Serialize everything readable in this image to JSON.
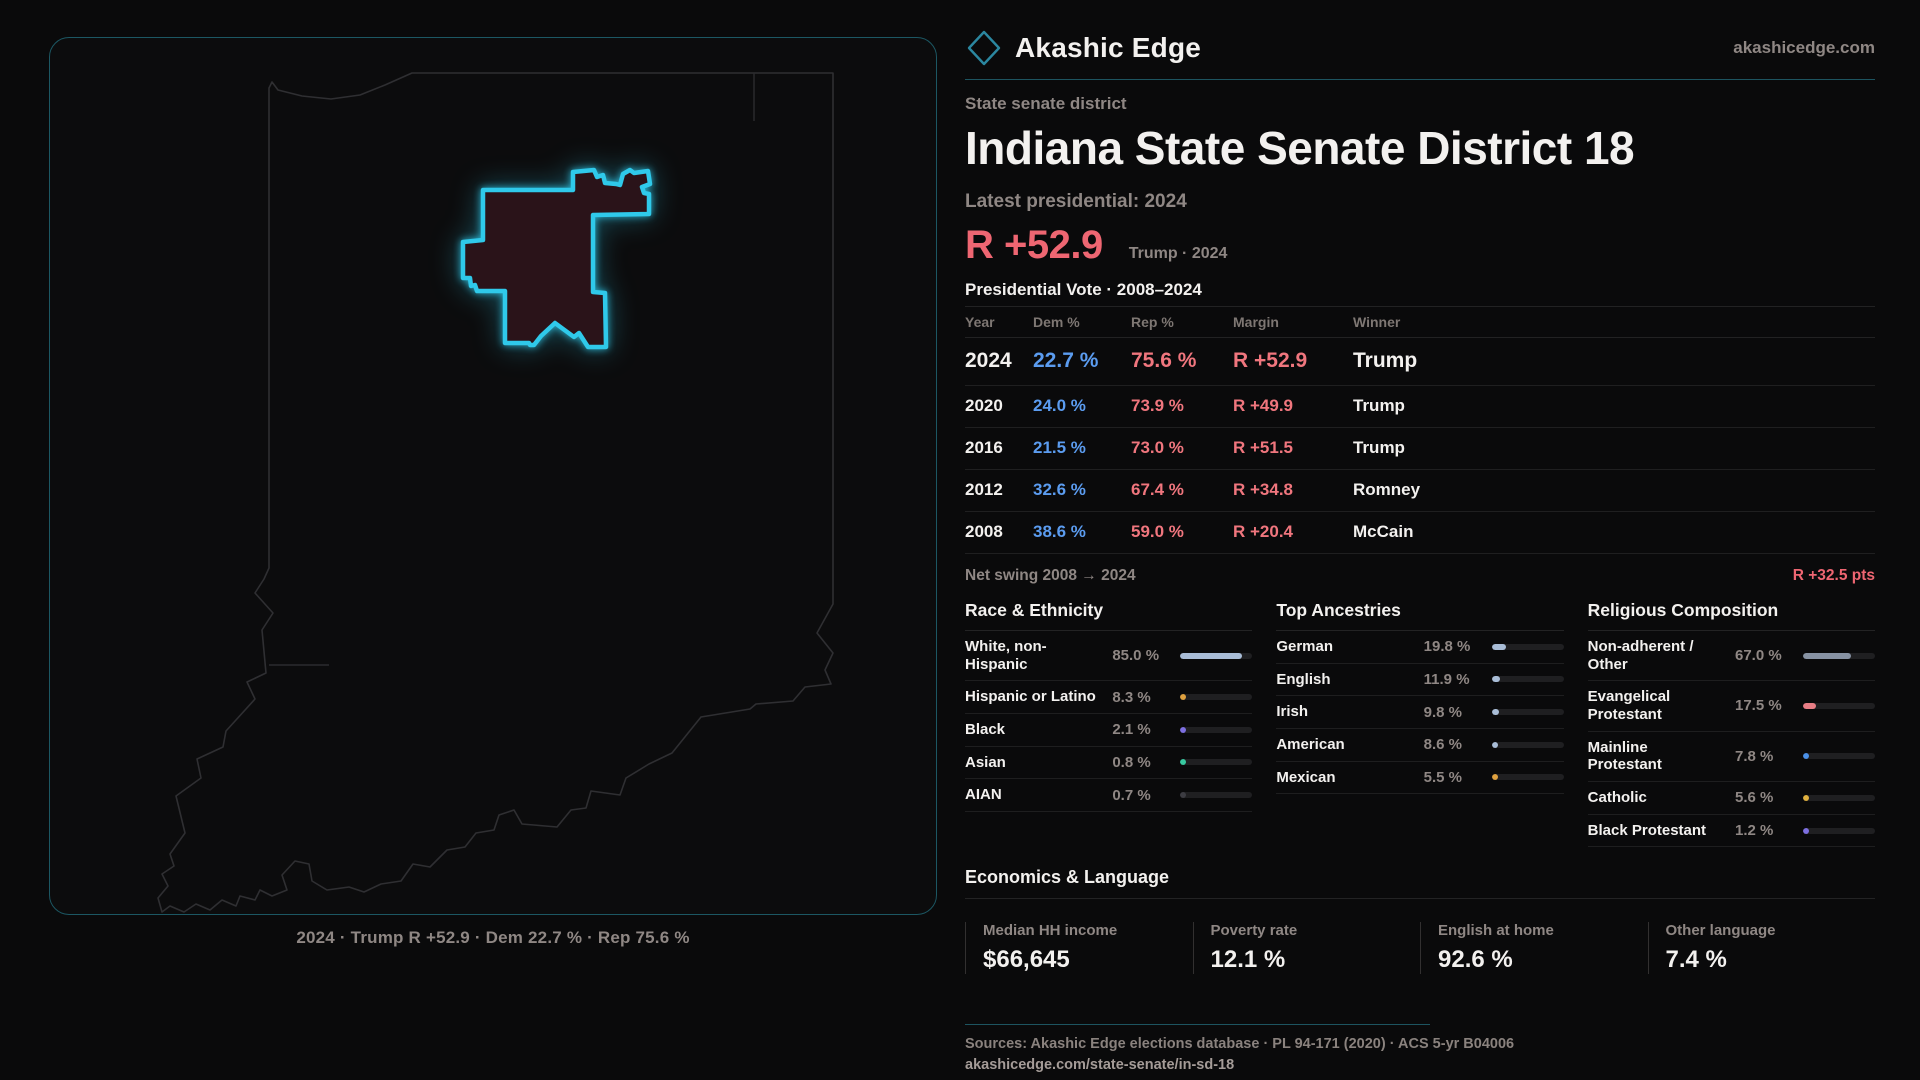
{
  "site": {
    "brand": "Akashic Edge",
    "domain": "akashicedge.com",
    "accent_cyan": "#2fc9ea",
    "dem_blue": "#5b9cf0",
    "rep_red": "#f0767e"
  },
  "map": {
    "caption": "2024 · Trump R +52.9 · Dem 22.7 % · Rep 75.6 %"
  },
  "header": {
    "eyebrow": "State senate district",
    "title": "Indiana State Senate District 18",
    "latest_label": "Latest presidential: 2024",
    "margin_value": "R +52.9",
    "margin_note": "Trump · 2024"
  },
  "vote_table": {
    "title": "Presidential Vote · 2008–2024",
    "columns": [
      "Year",
      "Dem %",
      "Rep %",
      "Margin",
      "Winner"
    ],
    "rows": [
      {
        "big": true,
        "year": "2024",
        "dem": "22.7 %",
        "rep": "75.6 %",
        "margin": "R +52.9",
        "winner": "Trump"
      },
      {
        "year": "2020",
        "dem": "24.0 %",
        "rep": "73.9 %",
        "margin": "R +49.9",
        "winner": "Trump"
      },
      {
        "year": "2016",
        "dem": "21.5 %",
        "rep": "73.0 %",
        "margin": "R +51.5",
        "winner": "Trump"
      },
      {
        "year": "2012",
        "dem": "32.6 %",
        "rep": "67.4 %",
        "margin": "R +34.8",
        "winner": "Romney"
      },
      {
        "year": "2008",
        "dem": "38.6 %",
        "rep": "59.0 %",
        "margin": "R +20.4",
        "winner": "McCain"
      }
    ],
    "net_swing_label": "Net swing 2008 → 2024",
    "net_swing_value": "R +32.5 pts"
  },
  "race": {
    "title": "Race & Ethnicity",
    "rows": [
      {
        "label": "White, non-Hispanic",
        "value": "85.0 %",
        "pct": 85.0,
        "color": "#a9bdd7"
      },
      {
        "label": "Hispanic or Latino",
        "value": "8.3 %",
        "pct": 8.3,
        "color": "#dfa13f"
      },
      {
        "label": "Black",
        "value": "2.1 %",
        "pct": 2.1,
        "color": "#7d6fe0"
      },
      {
        "label": "Asian",
        "value": "0.8 %",
        "pct": 0.8,
        "color": "#38c9a0"
      },
      {
        "label": "AIAN",
        "value": "0.7 %",
        "pct": 0.7,
        "color": "#3c3c42"
      }
    ]
  },
  "ancestries": {
    "title": "Top Ancestries",
    "rows": [
      {
        "label": "German",
        "value": "19.8 %",
        "pct": 19.8,
        "color": "#a9bdd7"
      },
      {
        "label": "English",
        "value": "11.9 %",
        "pct": 11.9,
        "color": "#a9bdd7"
      },
      {
        "label": "Irish",
        "value": "9.8 %",
        "pct": 9.8,
        "color": "#a9bdd7"
      },
      {
        "label": "American",
        "value": "8.6 %",
        "pct": 8.6,
        "color": "#a9bdd7"
      },
      {
        "label": "Mexican",
        "value": "5.5 %",
        "pct": 5.5,
        "color": "#dfa13f"
      }
    ]
  },
  "religion": {
    "title": "Religious Composition",
    "rows": [
      {
        "label": "Non-adherent / Other",
        "value": "67.0 %",
        "pct": 67.0,
        "color": "#8792a3"
      },
      {
        "label": "Evangelical Protestant",
        "value": "17.5 %",
        "pct": 17.5,
        "color": "#e87d85"
      },
      {
        "label": "Mainline Protestant",
        "value": "7.8 %",
        "pct": 7.8,
        "color": "#4a90e8"
      },
      {
        "label": "Catholic",
        "value": "5.6 %",
        "pct": 5.6,
        "color": "#e0b13f"
      },
      {
        "label": "Black Protestant",
        "value": "1.2 %",
        "pct": 1.2,
        "color": "#7d6fe0"
      }
    ]
  },
  "economics": {
    "title": "Economics & Language",
    "stats": [
      {
        "label": "Median HH income",
        "value": "$66,645"
      },
      {
        "label": "Poverty rate",
        "value": "12.1 %"
      },
      {
        "label": "English at home",
        "value": "92.6 %"
      },
      {
        "label": "Other language",
        "value": "7.4 %"
      }
    ]
  },
  "footer": {
    "sources": "Sources: Akashic Edge elections database · PL 94-171 (2020) · ACS 5-yr B04006",
    "permalink": "akashicedge.com/state-senate/in-sd-18"
  },
  "chart_data": [
    {
      "type": "table",
      "title": "Presidential Vote · 2008–2024",
      "columns": [
        "Year",
        "Dem %",
        "Rep %",
        "Margin",
        "Winner"
      ],
      "rows": [
        [
          "2024",
          22.7,
          75.6,
          "R +52.9",
          "Trump"
        ],
        [
          "2020",
          24.0,
          73.9,
          "R +49.9",
          "Trump"
        ],
        [
          "2016",
          21.5,
          73.0,
          "R +51.5",
          "Trump"
        ],
        [
          "2012",
          32.6,
          67.4,
          "R +34.8",
          "Romney"
        ],
        [
          "2008",
          38.6,
          59.0,
          "R +20.4",
          "McCain"
        ]
      ]
    },
    {
      "type": "bar",
      "title": "Race & Ethnicity",
      "categories": [
        "White, non-Hispanic",
        "Hispanic or Latino",
        "Black",
        "Asian",
        "AIAN"
      ],
      "values": [
        85.0,
        8.3,
        2.1,
        0.8,
        0.7
      ],
      "xlim": [
        0,
        100
      ]
    },
    {
      "type": "bar",
      "title": "Top Ancestries",
      "categories": [
        "German",
        "English",
        "Irish",
        "American",
        "Mexican"
      ],
      "values": [
        19.8,
        11.9,
        9.8,
        8.6,
        5.5
      ],
      "xlim": [
        0,
        100
      ]
    },
    {
      "type": "bar",
      "title": "Religious Composition",
      "categories": [
        "Non-adherent / Other",
        "Evangelical Protestant",
        "Mainline Protestant",
        "Catholic",
        "Black Protestant"
      ],
      "values": [
        67.0,
        17.5,
        7.8,
        5.6,
        1.2
      ],
      "xlim": [
        0,
        100
      ]
    }
  ]
}
